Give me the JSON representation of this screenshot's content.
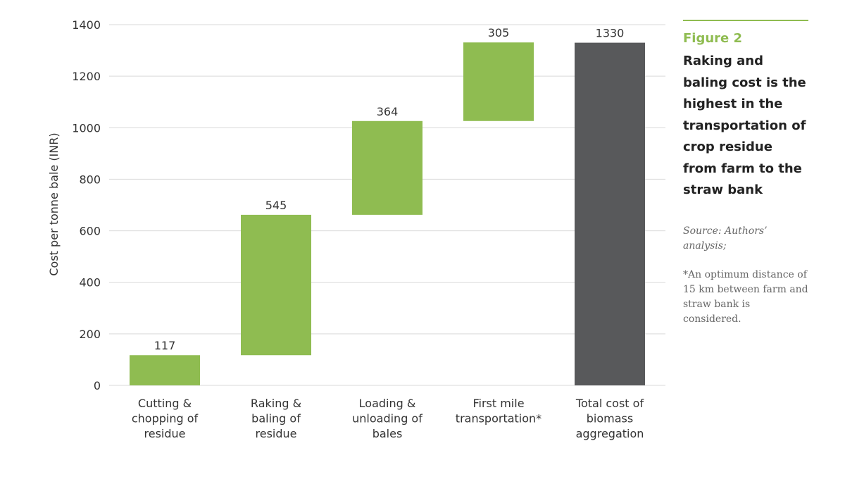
{
  "chart_data": {
    "type": "bar",
    "subtype": "waterfall",
    "categories": [
      "Cutting & chopping of residue",
      "Raking & baling of residue",
      "Loading & unloading of bales",
      "First mile transportation*",
      "Total cost of biomass aggregation"
    ],
    "category_lines": [
      [
        "Cutting &",
        "chopping of",
        "residue"
      ],
      [
        "Raking &",
        "baling of",
        "residue"
      ],
      [
        "Loading &",
        "unloading of",
        "bales"
      ],
      [
        "First mile",
        "transportation*"
      ],
      [
        "Total cost of",
        "biomass",
        "aggregation"
      ]
    ],
    "values": [
      117,
      545,
      364,
      305,
      1330
    ],
    "data_labels": [
      "117",
      "545",
      "364",
      "305",
      "1330"
    ],
    "bar_kinds": [
      "increment",
      "increment",
      "increment",
      "increment",
      "total"
    ],
    "ylabel": "Cost per tonne bale (INR)",
    "xlabel": "",
    "ylim": [
      0,
      1400
    ],
    "yticks": [
      0,
      200,
      400,
      600,
      800,
      1000,
      1200,
      1400
    ],
    "grid": true,
    "colors": {
      "increment": "#8fbc51",
      "total": "#58595b",
      "grid": "#d9d9d9"
    }
  },
  "sidebar": {
    "figure_label": "Figure 2",
    "title": "Raking and baling cost is the highest in the transportation of crop residue from farm to the straw bank",
    "source": "Source: Authors’ analysis;",
    "note": "*An optimum distance of 15 km between farm and straw bank is considered."
  }
}
